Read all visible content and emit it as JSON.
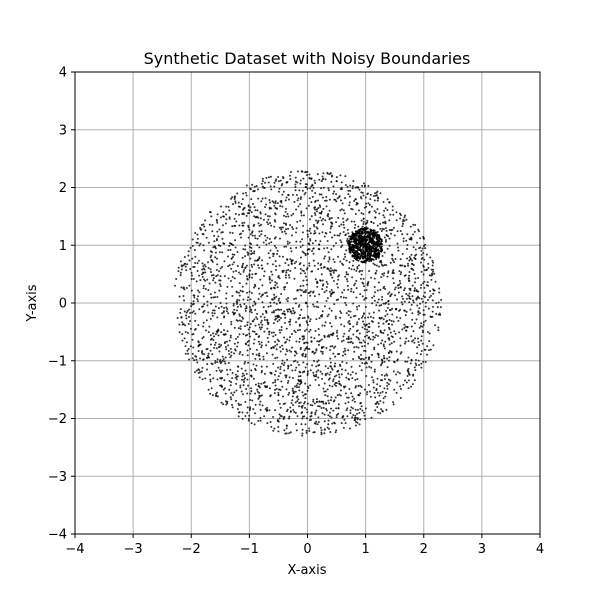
{
  "chart_data": {
    "type": "scatter",
    "title": "Synthetic Dataset with Noisy Boundaries",
    "xlabel": "X-axis",
    "ylabel": "Y-axis",
    "xlim": [
      -4,
      4
    ],
    "ylim": [
      -4,
      4
    ],
    "xticks": [
      -4,
      -3,
      -2,
      -1,
      0,
      1,
      2,
      3,
      4
    ],
    "yticks": [
      -4,
      -3,
      -2,
      -1,
      0,
      1,
      2,
      3,
      4
    ],
    "xtick_labels": [
      "−4",
      "−3",
      "−2",
      "−1",
      "0",
      "1",
      "2",
      "3",
      "4"
    ],
    "ytick_labels": [
      "−4",
      "−3",
      "−2",
      "−1",
      "0",
      "1",
      "2",
      "3",
      "4"
    ],
    "grid": true,
    "point_color": "#000000",
    "series": [
      {
        "description_shape": "disk",
        "center": [
          0,
          0
        ],
        "radius": 2.3,
        "count": 3000
      },
      {
        "description_shape": "dense cluster",
        "center": [
          1,
          1
        ],
        "radius": 0.3,
        "count": 600
      }
    ]
  }
}
